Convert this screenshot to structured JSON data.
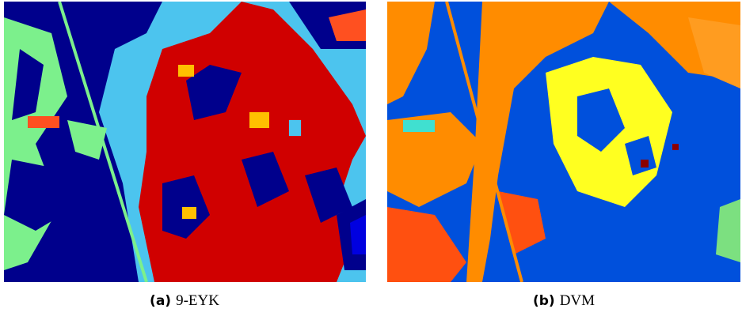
{
  "figure": {
    "panels": [
      {
        "label": "(a)",
        "caption": "9-EYK"
      },
      {
        "label": "(b)",
        "caption": "DVM"
      }
    ]
  }
}
